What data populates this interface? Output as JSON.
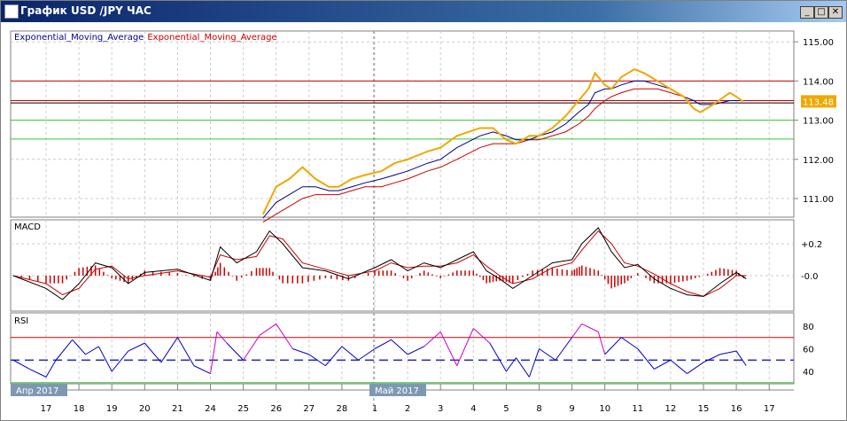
{
  "window": {
    "title": "График USD /JPY  ЧАС",
    "buttons": {
      "minimize": "_",
      "maximize": "□",
      "close": "✕"
    }
  },
  "legend": [
    {
      "label": "Exponential_Moving_Average",
      "color": "#00008b"
    },
    {
      "label": "Exponential_Moving_Average",
      "color": "#cc0000"
    }
  ],
  "colors": {
    "price": "#f0a800",
    "ema_fast": "#00008b",
    "ema_slow": "#cc0000",
    "hist": "#cc0000",
    "rsi": "#0000cc",
    "rsi_overbought": "#cc00cc",
    "green": "#33cc33"
  },
  "chart_data": [
    {
      "type": "line",
      "panel": "price",
      "yticks": [
        "115.00",
        "114.00",
        "113.00",
        "112.00",
        "111.00"
      ],
      "ylim": [
        110.5,
        115.3
      ],
      "current_price": "113.48",
      "levels": {
        "red": [
          114.0,
          113.5
        ],
        "black": [
          113.44
        ],
        "green": [
          113.0,
          112.52
        ]
      },
      "x": [
        6.6,
        7.0,
        7.4,
        7.8,
        8.2,
        8.6,
        8.9,
        9.3,
        9.7,
        10.2,
        10.6,
        11.0,
        11.6,
        12.0,
        12.5,
        13.2,
        13.6,
        14.0,
        14.3,
        14.7,
        15.0,
        15.4,
        15.8,
        16.2,
        16.5,
        16.7,
        17.0,
        17.2,
        17.5,
        17.9,
        18.2,
        18.6,
        19.0,
        19.4,
        19.7,
        19.9,
        20.3,
        20.8,
        21.0,
        21.2
      ],
      "series": [
        {
          "key": "price",
          "values": [
            110.6,
            111.3,
            111.5,
            111.8,
            111.5,
            111.3,
            111.3,
            111.5,
            111.6,
            111.7,
            111.9,
            112.0,
            112.2,
            112.3,
            112.6,
            112.8,
            112.8,
            112.5,
            112.4,
            112.6,
            112.6,
            112.8,
            113.1,
            113.5,
            113.8,
            114.2,
            113.9,
            113.8,
            114.1,
            114.3,
            114.2,
            114.0,
            113.8,
            113.6,
            113.3,
            113.2,
            113.4,
            113.7,
            113.6,
            113.48
          ]
        },
        {
          "key": "ema_fast",
          "values": [
            110.5,
            110.9,
            111.1,
            111.3,
            111.3,
            111.2,
            111.2,
            111.3,
            111.4,
            111.5,
            111.6,
            111.7,
            111.9,
            112.0,
            112.3,
            112.6,
            112.7,
            112.6,
            112.5,
            112.5,
            112.6,
            112.7,
            112.9,
            113.2,
            113.4,
            113.7,
            113.8,
            113.8,
            113.9,
            114.0,
            114.0,
            113.9,
            113.8,
            113.6,
            113.5,
            113.4,
            113.4,
            113.5,
            113.5,
            113.5
          ]
        },
        {
          "key": "ema_slow",
          "values": [
            110.4,
            110.6,
            110.8,
            111.0,
            111.1,
            111.1,
            111.1,
            111.2,
            111.3,
            111.3,
            111.4,
            111.5,
            111.7,
            111.8,
            112.0,
            112.3,
            112.4,
            112.4,
            112.4,
            112.5,
            112.5,
            112.6,
            112.7,
            112.9,
            113.1,
            113.3,
            113.5,
            113.6,
            113.7,
            113.8,
            113.8,
            113.8,
            113.7,
            113.6,
            113.5,
            113.5,
            113.5,
            113.5,
            113.5,
            113.5
          ]
        }
      ]
    },
    {
      "type": "line",
      "panel": "MACD",
      "title": "MACD",
      "yticks": [
        "+0.2",
        "-0.0"
      ],
      "ylim": [
        -0.21,
        0.35
      ],
      "x": [
        -1,
        0,
        0.5,
        1,
        1.5,
        2,
        2.5,
        3,
        4,
        5,
        5.3,
        5.8,
        6.4,
        6.8,
        7.2,
        7.8,
        8.5,
        9.2,
        10,
        10.5,
        11,
        11.5,
        12,
        12.5,
        13,
        13.4,
        13.8,
        14.2,
        14.8,
        15.4,
        16,
        16.3,
        16.8,
        17.2,
        17.6,
        18,
        18.5,
        19,
        19.5,
        20,
        20.5,
        21,
        21.3
      ],
      "series": [
        {
          "key": "macd",
          "values": [
            0,
            -0.08,
            -0.15,
            -0.05,
            0.08,
            0.05,
            -0.05,
            0.02,
            0.04,
            -0.03,
            0.18,
            0.08,
            0.15,
            0.28,
            0.2,
            0.05,
            0.03,
            -0.02,
            0.05,
            0.1,
            0.03,
            0.08,
            0.05,
            0.1,
            0.15,
            0.03,
            -0.02,
            -0.08,
            0,
            0.08,
            0.1,
            0.2,
            0.3,
            0.15,
            0.05,
            0.07,
            -0.02,
            -0.08,
            -0.12,
            -0.13,
            -0.05,
            0.02,
            -0.02
          ]
        },
        {
          "key": "signal",
          "values": [
            0,
            -0.05,
            -0.12,
            -0.08,
            0.04,
            0.06,
            -0.02,
            0.0,
            0.03,
            -0.01,
            0.13,
            0.1,
            0.12,
            0.25,
            0.23,
            0.08,
            0.04,
            0.0,
            0.03,
            0.08,
            0.05,
            0.06,
            0.06,
            0.08,
            0.13,
            0.06,
            0.0,
            -0.05,
            -0.02,
            0.05,
            0.08,
            0.16,
            0.28,
            0.2,
            0.08,
            0.06,
            0.01,
            -0.05,
            -0.1,
            -0.13,
            -0.08,
            0.0,
            0.0
          ]
        }
      ]
    },
    {
      "type": "line",
      "panel": "RSI",
      "title": "RSI",
      "yticks": [
        "80",
        "60",
        "40"
      ],
      "ylim": [
        20,
        90
      ],
      "levels": {
        "overbought": 70,
        "mid": 50,
        "oversold": 30
      },
      "x": [
        -1,
        -0.5,
        0,
        0.3,
        0.8,
        1.2,
        1.6,
        2,
        2.5,
        3,
        3.5,
        4,
        4.5,
        5,
        5.2,
        5.5,
        6,
        6.5,
        7,
        7.5,
        8,
        8.5,
        9,
        9.5,
        10,
        10.5,
        11,
        11.5,
        12,
        12.5,
        13,
        13.5,
        14,
        14.3,
        14.7,
        15,
        15.5,
        16,
        16.3,
        16.8,
        17,
        17.5,
        18,
        18.5,
        19,
        19.5,
        20,
        20.5,
        21,
        21.3
      ],
      "series": [
        {
          "key": "rsi",
          "values": [
            50,
            42,
            35,
            50,
            68,
            55,
            62,
            40,
            58,
            65,
            48,
            70,
            45,
            38,
            75,
            65,
            50,
            72,
            82,
            60,
            55,
            45,
            62,
            50,
            60,
            68,
            55,
            62,
            75,
            45,
            78,
            65,
            40,
            52,
            35,
            60,
            50,
            70,
            82,
            75,
            55,
            70,
            60,
            42,
            50,
            38,
            48,
            55,
            58,
            45
          ]
        }
      ]
    }
  ],
  "xaxis": {
    "labels": [
      "17",
      "18",
      "19",
      "20",
      "21",
      "24",
      "25",
      "26",
      "27",
      "28",
      "1",
      "2",
      "3",
      "4",
      "5",
      "8",
      "9",
      "10",
      "11",
      "12",
      "15",
      "16",
      "17"
    ],
    "months": [
      {
        "label": "Апр 2017",
        "at": 0
      },
      {
        "label": "Май 2017",
        "at": 10
      }
    ]
  }
}
